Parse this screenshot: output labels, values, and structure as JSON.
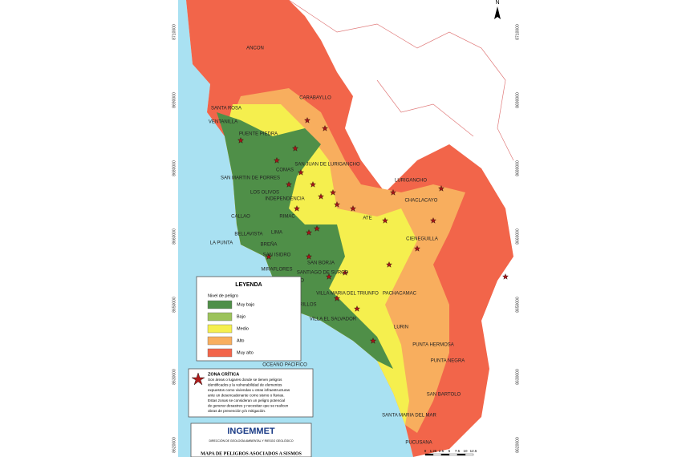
{
  "north": "N",
  "districts": [
    "ANCON",
    "SANTA ROSA",
    "CARABAYLLO",
    "VENTANILLA",
    "PUENTE PIEDRA",
    "COMAS",
    "SAN JUAN DE LURIGANCHO",
    "LURIGANCHO",
    "CHACLACAYO",
    "SAN MARTIN DE PORRES",
    "LOS OLIVOS",
    "INDEPENDENCIA",
    "CALLAO",
    "RIMAC",
    "ATE",
    "BELLAVISTA",
    "LIMA",
    "LA PUNTA",
    "BREÑA",
    "CIENEGUILLA",
    "SAN ISIDRO",
    "SAN BORJA",
    "MIRAFLORES",
    "SANTIAGO DE SURCO",
    "BARRANCO",
    "CHORRILLOS",
    "VILLA MARIA DEL TRIUNFO",
    "PACHACAMAC",
    "VILLA EL SALVADOR",
    "LURIN",
    "PUNTA HERMOSA",
    "PUNTA NEGRA",
    "SAN BARTOLO",
    "SANTA MARIA DEL MAR",
    "PUCUSANA",
    "OCEANO PACIFICO"
  ],
  "coordinates": {
    "left": [
      8710000,
      8690000,
      8680000,
      8660000,
      8650000,
      8630000,
      8620000
    ],
    "right": [
      8710000,
      8690000,
      8680000,
      8660000,
      8650000,
      8630000,
      8620000
    ]
  },
  "legend": {
    "title": "LEYENDA",
    "subtitle": "Nivel de peligro",
    "items": [
      {
        "label": "Muy bajo",
        "color": "#4f8f48"
      },
      {
        "label": "Bajo",
        "color": "#9cc35a"
      },
      {
        "label": "Medio",
        "color": "#f5ef4e"
      },
      {
        "label": "Alto",
        "color": "#f8ae5e"
      },
      {
        "label": "Muy alto",
        "color": "#f2654a"
      }
    ]
  },
  "critical_zone": {
    "title": "ZONA CRÍTICA",
    "lines": [
      "Son áreas o lugares donde se tienen peligros",
      "identificados y la vulnerabilidad de elementos",
      "expuestos como viviendas u otras infraestructuras",
      "ante un desencadenante como sismo o lluvias.",
      "Estas zonas se consideran un peligro potencial",
      "de generar desastres y necesitan que se realicen",
      "obras de prevención y/o mitigación."
    ]
  },
  "title_block": {
    "agency": "INGEMMET",
    "directorate": "DIRECCIÓN DE GEOLOGÍA AMBIENTAL Y RIESGO GEOLÓGICO",
    "map_title": "MAPA DE PELIGROS ASOCIADOS A SISMOS"
  },
  "scale": [
    0,
    1.25,
    2.5,
    5,
    7.5,
    10,
    12.5
  ]
}
